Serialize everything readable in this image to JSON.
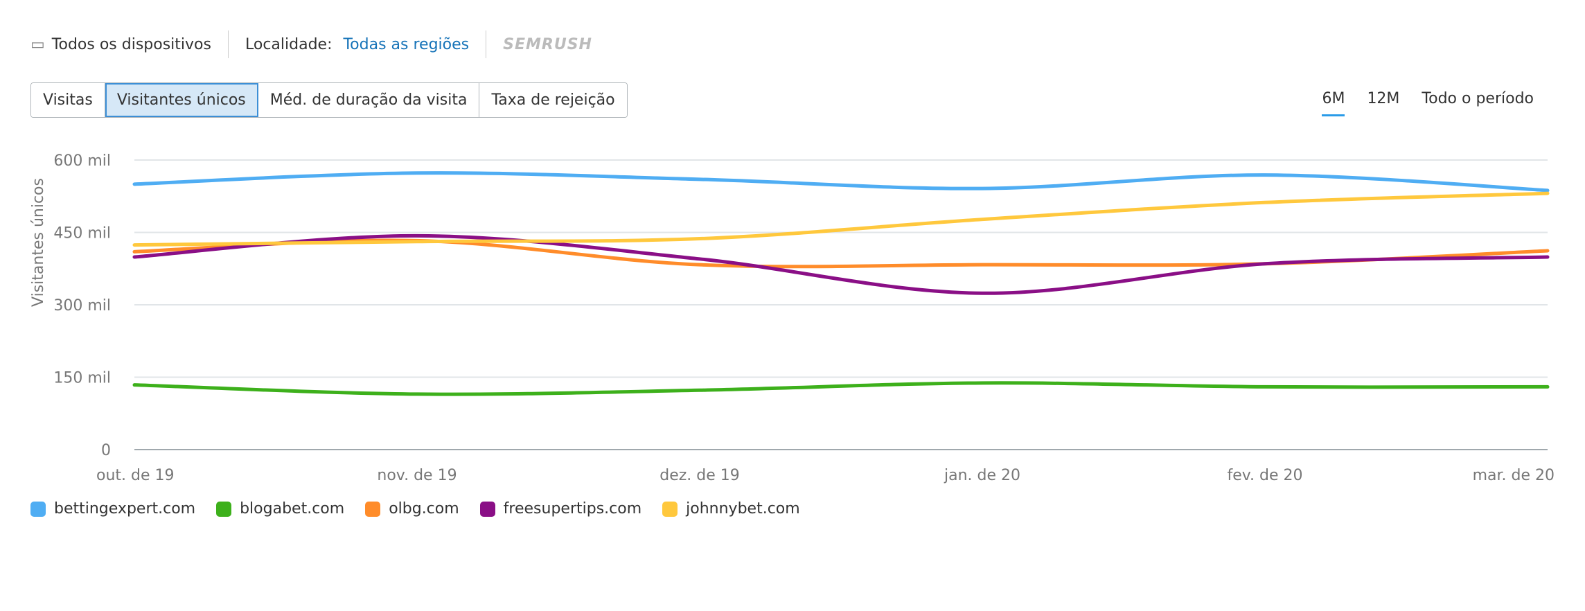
{
  "filters": {
    "devices": "Todos os dispositivos",
    "location_label": "Localidade:",
    "location_value": "Todas as regiões",
    "brand": "SEMRUSH"
  },
  "tabs": [
    {
      "label": "Visitas"
    },
    {
      "label": "Visitantes únicos",
      "active": true
    },
    {
      "label": "Méd. de duração da visita"
    },
    {
      "label": "Taxa de rejeição"
    }
  ],
  "periods": [
    {
      "label": "6M",
      "active": true
    },
    {
      "label": "12M"
    },
    {
      "label": "Todo o período"
    }
  ],
  "chart_data": {
    "type": "line",
    "ylabel": "Visitantes únicos",
    "ylim": [
      0,
      600000
    ],
    "yticks": [
      {
        "v": 0,
        "label": "0"
      },
      {
        "v": 150000,
        "label": "150 mil"
      },
      {
        "v": 300000,
        "label": "300 mil"
      },
      {
        "v": 450000,
        "label": "450 mil"
      },
      {
        "v": 600000,
        "label": "600 mil"
      }
    ],
    "categories": [
      "out. de 19",
      "nov. de 19",
      "dez. de 19",
      "jan. de 20",
      "fev. de 20",
      "mar. de 20"
    ],
    "series": [
      {
        "name": "bettingexpert.com",
        "color": "#4fadf3",
        "values": [
          550000,
          573000,
          560000,
          541000,
          569000,
          537000
        ]
      },
      {
        "name": "blogabet.com",
        "color": "#3db01b",
        "values": [
          134000,
          115000,
          123000,
          138000,
          130000,
          130000
        ]
      },
      {
        "name": "olbg.com",
        "color": "#ff8c2a",
        "values": [
          410000,
          433000,
          383000,
          383000,
          385000,
          412000
        ]
      },
      {
        "name": "freesupertips.com",
        "color": "#8a0f86",
        "values": [
          399000,
          443000,
          395000,
          324000,
          385000,
          399000
        ]
      },
      {
        "name": "johnnybet.com",
        "color": "#ffc83d",
        "values": [
          424000,
          431000,
          437000,
          477000,
          512000,
          531000
        ]
      }
    ]
  }
}
